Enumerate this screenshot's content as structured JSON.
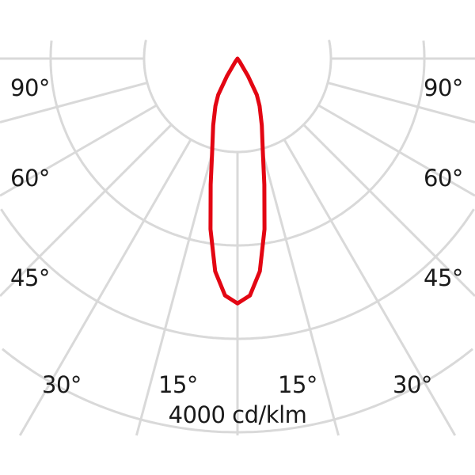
{
  "chart_data": {
    "type": "polar",
    "title": "",
    "unit_label": "4000 cd/klm",
    "scale_max": 4000,
    "ring_count": 4,
    "radial_step_deg": 15,
    "grid": true,
    "angle_labels": {
      "left": [
        "90°",
        "60°",
        "45°",
        "30°",
        "15°"
      ],
      "right": [
        "90°",
        "60°",
        "45°",
        "30°",
        "15°"
      ]
    },
    "series": [
      {
        "color": "#e30613",
        "angles_deg": [
          0,
          3,
          6,
          9,
          12,
          15,
          20,
          25,
          28,
          31,
          35,
          90
        ],
        "values": [
          2620,
          2540,
          2290,
          1850,
          1380,
          1050,
          760,
          560,
          440,
          220,
          40,
          0
        ]
      }
    ]
  },
  "colors": {
    "grid": "#d9d9d9",
    "curve": "#e30613",
    "text": "#1a1a1a"
  }
}
